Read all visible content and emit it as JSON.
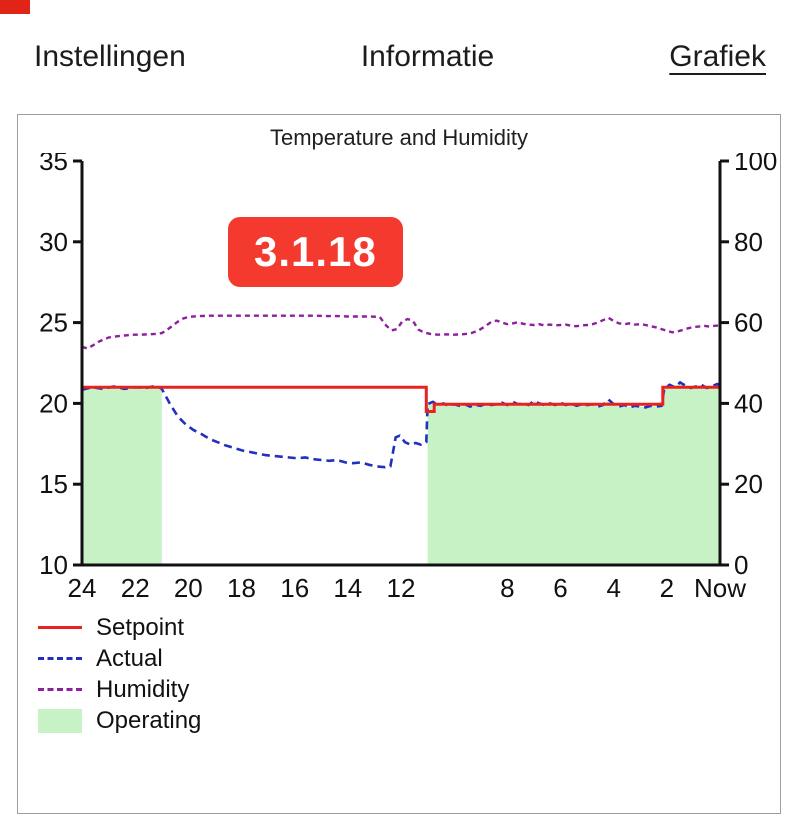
{
  "app": {
    "corner_badge_color": "#e02418"
  },
  "tabs": [
    {
      "label": "Instellingen",
      "active": false
    },
    {
      "label": "Informatie",
      "active": false
    },
    {
      "label": "Grafiek",
      "active": true
    }
  ],
  "version_badge": {
    "text": "3.1.18",
    "bg": "#f4392e"
  },
  "chart_data": {
    "type": "line",
    "title": "Temperature and Humidity",
    "x_unit": "hours ago (24 = oldest, Now = current)",
    "x_ticks": [
      {
        "t": 24,
        "label": "24"
      },
      {
        "t": 22,
        "label": "22"
      },
      {
        "t": 20,
        "label": "20"
      },
      {
        "t": 18,
        "label": "18"
      },
      {
        "t": 16,
        "label": "16"
      },
      {
        "t": 14,
        "label": "14"
      },
      {
        "t": 12,
        "label": "12"
      },
      {
        "t": 8,
        "label": "8"
      },
      {
        "t": 6,
        "label": "6"
      },
      {
        "t": 4,
        "label": "4"
      },
      {
        "t": 2,
        "label": "2"
      },
      {
        "t": 0,
        "label": "Now"
      }
    ],
    "left_axis": {
      "name": "Temperature",
      "min": 10,
      "max": 35,
      "ticks": [
        10,
        15,
        20,
        25,
        30,
        35
      ]
    },
    "right_axis": {
      "name": "Humidity",
      "min": 0,
      "max": 100,
      "ticks": [
        0,
        20,
        40,
        60,
        80,
        100
      ]
    },
    "series": [
      {
        "name": "Humidity",
        "axis": "right",
        "color": "#8e1f9e",
        "style": "dashed-fine",
        "width": 2.4,
        "points": [
          [
            24,
            54.0
          ],
          [
            23.8,
            53.6
          ],
          [
            23.6,
            54.3
          ],
          [
            23.4,
            55.2
          ],
          [
            23.2,
            55.8
          ],
          [
            23.0,
            56.3
          ],
          [
            22.7,
            56.6
          ],
          [
            22.4,
            56.8
          ],
          [
            22.1,
            57.0
          ],
          [
            21.8,
            57.0
          ],
          [
            21.5,
            57.1
          ],
          [
            21.2,
            57.2
          ],
          [
            21.0,
            57.4
          ],
          [
            20.8,
            58.2
          ],
          [
            20.6,
            59.2
          ],
          [
            20.4,
            60.2
          ],
          [
            20.2,
            61.0
          ],
          [
            20.0,
            61.4
          ],
          [
            19.6,
            61.6
          ],
          [
            19.2,
            61.7
          ],
          [
            18.8,
            61.7
          ],
          [
            18.4,
            61.7
          ],
          [
            18.0,
            61.7
          ],
          [
            17.6,
            61.7
          ],
          [
            17.2,
            61.7
          ],
          [
            16.8,
            61.7
          ],
          [
            16.4,
            61.7
          ],
          [
            16.0,
            61.7
          ],
          [
            15.6,
            61.7
          ],
          [
            15.2,
            61.7
          ],
          [
            14.8,
            61.6
          ],
          [
            14.4,
            61.6
          ],
          [
            14.0,
            61.5
          ],
          [
            13.6,
            61.5
          ],
          [
            13.2,
            61.5
          ],
          [
            12.8,
            61.4
          ],
          [
            12.55,
            59.2
          ],
          [
            12.35,
            58.1
          ],
          [
            12.15,
            58.4
          ],
          [
            11.95,
            60.3
          ],
          [
            11.75,
            60.9
          ],
          [
            11.55,
            60.4
          ],
          [
            11.35,
            58.3
          ],
          [
            11.15,
            57.6
          ],
          [
            10.9,
            57.2
          ],
          [
            10.6,
            57.0
          ],
          [
            10.3,
            57.1
          ],
          [
            10.0,
            57.0
          ],
          [
            9.7,
            57.1
          ],
          [
            9.4,
            57.3
          ],
          [
            9.1,
            58.0
          ],
          [
            8.85,
            59.0
          ],
          [
            8.6,
            60.2
          ],
          [
            8.4,
            60.5
          ],
          [
            8.2,
            60.0
          ],
          [
            8.0,
            59.6
          ],
          [
            7.8,
            59.8
          ],
          [
            7.6,
            60.1
          ],
          [
            7.4,
            59.7
          ],
          [
            7.2,
            59.5
          ],
          [
            7.0,
            59.4
          ],
          [
            6.8,
            59.6
          ],
          [
            6.6,
            59.3
          ],
          [
            6.4,
            59.5
          ],
          [
            6.2,
            59.3
          ],
          [
            6.0,
            59.4
          ],
          [
            5.8,
            59.5
          ],
          [
            5.6,
            59.2
          ],
          [
            5.4,
            59.1
          ],
          [
            5.2,
            59.3
          ],
          [
            5.0,
            59.4
          ],
          [
            4.8,
            59.6
          ],
          [
            4.6,
            60.0
          ],
          [
            4.4,
            60.6
          ],
          [
            4.2,
            61.2
          ],
          [
            4.0,
            60.4
          ],
          [
            3.8,
            59.8
          ],
          [
            3.6,
            59.6
          ],
          [
            3.4,
            59.8
          ],
          [
            3.2,
            59.5
          ],
          [
            3.0,
            59.6
          ],
          [
            2.8,
            59.4
          ],
          [
            2.6,
            59.1
          ],
          [
            2.4,
            58.8
          ],
          [
            2.2,
            58.4
          ],
          [
            2.0,
            58.0
          ],
          [
            1.8,
            57.6
          ],
          [
            1.6,
            57.8
          ],
          [
            1.4,
            58.2
          ],
          [
            1.2,
            58.6
          ],
          [
            1.0,
            58.9
          ],
          [
            0.8,
            59.0
          ],
          [
            0.6,
            59.2
          ],
          [
            0.4,
            59.0
          ],
          [
            0.2,
            59.2
          ],
          [
            0,
            59.3
          ]
        ]
      },
      {
        "name": "Actual",
        "axis": "left",
        "color": "#2230c0",
        "style": "dashed",
        "width": 2.6,
        "points": [
          [
            24,
            20.85
          ],
          [
            23.6,
            21.0
          ],
          [
            23.2,
            20.9
          ],
          [
            22.8,
            21.05
          ],
          [
            22.4,
            20.9
          ],
          [
            22.0,
            21.0
          ],
          [
            21.6,
            20.95
          ],
          [
            21.2,
            21.1
          ],
          [
            21.0,
            20.9
          ],
          [
            20.7,
            20.0
          ],
          [
            20.4,
            19.2
          ],
          [
            20.1,
            18.7
          ],
          [
            19.8,
            18.35
          ],
          [
            19.5,
            18.1
          ],
          [
            19.2,
            17.8
          ],
          [
            18.9,
            17.6
          ],
          [
            18.6,
            17.4
          ],
          [
            18.3,
            17.25
          ],
          [
            18.0,
            17.1
          ],
          [
            17.7,
            17.0
          ],
          [
            17.4,
            16.9
          ],
          [
            17.1,
            16.8
          ],
          [
            16.8,
            16.75
          ],
          [
            16.5,
            16.7
          ],
          [
            16.2,
            16.65
          ],
          [
            15.9,
            16.6
          ],
          [
            15.6,
            16.65
          ],
          [
            15.3,
            16.55
          ],
          [
            15.0,
            16.5
          ],
          [
            14.7,
            16.45
          ],
          [
            14.4,
            16.5
          ],
          [
            14.1,
            16.35
          ],
          [
            13.8,
            16.3
          ],
          [
            13.5,
            16.35
          ],
          [
            13.2,
            16.2
          ],
          [
            12.9,
            16.1
          ],
          [
            12.6,
            16.05
          ],
          [
            12.4,
            16.1
          ],
          [
            12.2,
            17.9
          ],
          [
            12.05,
            18.0
          ],
          [
            11.85,
            17.6
          ],
          [
            11.65,
            17.45
          ],
          [
            11.45,
            17.55
          ],
          [
            11.25,
            17.45
          ],
          [
            11.05,
            17.6
          ],
          [
            11.0,
            19.95
          ],
          [
            10.8,
            20.1
          ],
          [
            10.6,
            19.9
          ],
          [
            10.4,
            20.0
          ],
          [
            10.2,
            19.85
          ],
          [
            10.0,
            19.95
          ],
          [
            9.8,
            19.85
          ],
          [
            9.6,
            19.95
          ],
          [
            9.4,
            19.8
          ],
          [
            9.2,
            19.9
          ],
          [
            9.0,
            19.85
          ],
          [
            8.8,
            20.0
          ],
          [
            8.6,
            19.9
          ],
          [
            8.4,
            19.95
          ],
          [
            8.2,
            20.05
          ],
          [
            8.0,
            19.9
          ],
          [
            7.8,
            20.1
          ],
          [
            7.6,
            19.95
          ],
          [
            7.4,
            20.0
          ],
          [
            7.2,
            19.9
          ],
          [
            7.0,
            20.15
          ],
          [
            6.8,
            20.0
          ],
          [
            6.6,
            19.9
          ],
          [
            6.4,
            20.0
          ],
          [
            6.2,
            19.9
          ],
          [
            6.0,
            20.05
          ],
          [
            5.8,
            19.9
          ],
          [
            5.6,
            20.0
          ],
          [
            5.4,
            19.85
          ],
          [
            5.2,
            19.95
          ],
          [
            5.0,
            19.9
          ],
          [
            4.8,
            19.95
          ],
          [
            4.6,
            19.8
          ],
          [
            4.4,
            19.9
          ],
          [
            4.2,
            20.25
          ],
          [
            4.0,
            19.95
          ],
          [
            3.8,
            19.8
          ],
          [
            3.6,
            19.9
          ],
          [
            3.4,
            19.75
          ],
          [
            3.2,
            19.85
          ],
          [
            3.0,
            19.8
          ],
          [
            2.8,
            19.75
          ],
          [
            2.6,
            19.85
          ],
          [
            2.4,
            19.8
          ],
          [
            2.2,
            19.85
          ],
          [
            2.1,
            20.9
          ],
          [
            1.9,
            21.15
          ],
          [
            1.7,
            21.0
          ],
          [
            1.5,
            21.3
          ],
          [
            1.3,
            21.1
          ],
          [
            1.1,
            20.95
          ],
          [
            0.9,
            21.05
          ],
          [
            0.7,
            21.15
          ],
          [
            0.5,
            20.95
          ],
          [
            0.3,
            21.05
          ],
          [
            0.1,
            21.2
          ],
          [
            0,
            21.1
          ]
        ]
      },
      {
        "name": "Setpoint",
        "axis": "left",
        "color": "#e8231f",
        "style": "solid",
        "width": 3,
        "points": [
          [
            24,
            21.0
          ],
          [
            11.05,
            21.0
          ],
          [
            11.05,
            19.5
          ],
          [
            10.75,
            19.5
          ],
          [
            10.75,
            19.95
          ],
          [
            2.15,
            19.95
          ],
          [
            2.15,
            21.0
          ],
          [
            0,
            21.0
          ]
        ]
      }
    ],
    "operating": {
      "name": "Operating",
      "color": "#c6f2c6",
      "source_series": "Actual",
      "intervals": [
        [
          24,
          21.0
        ],
        [
          11.0,
          0
        ]
      ]
    },
    "legend": [
      {
        "label": "Setpoint",
        "swatch": "line-solid",
        "color": "#e8231f"
      },
      {
        "label": "Actual",
        "swatch": "line-dashed",
        "color": "#2230c0"
      },
      {
        "label": "Humidity",
        "swatch": "line-dashed-fine",
        "color": "#8e1f9e"
      },
      {
        "label": "Operating",
        "swatch": "fill",
        "color": "#c6f2c6"
      }
    ]
  }
}
